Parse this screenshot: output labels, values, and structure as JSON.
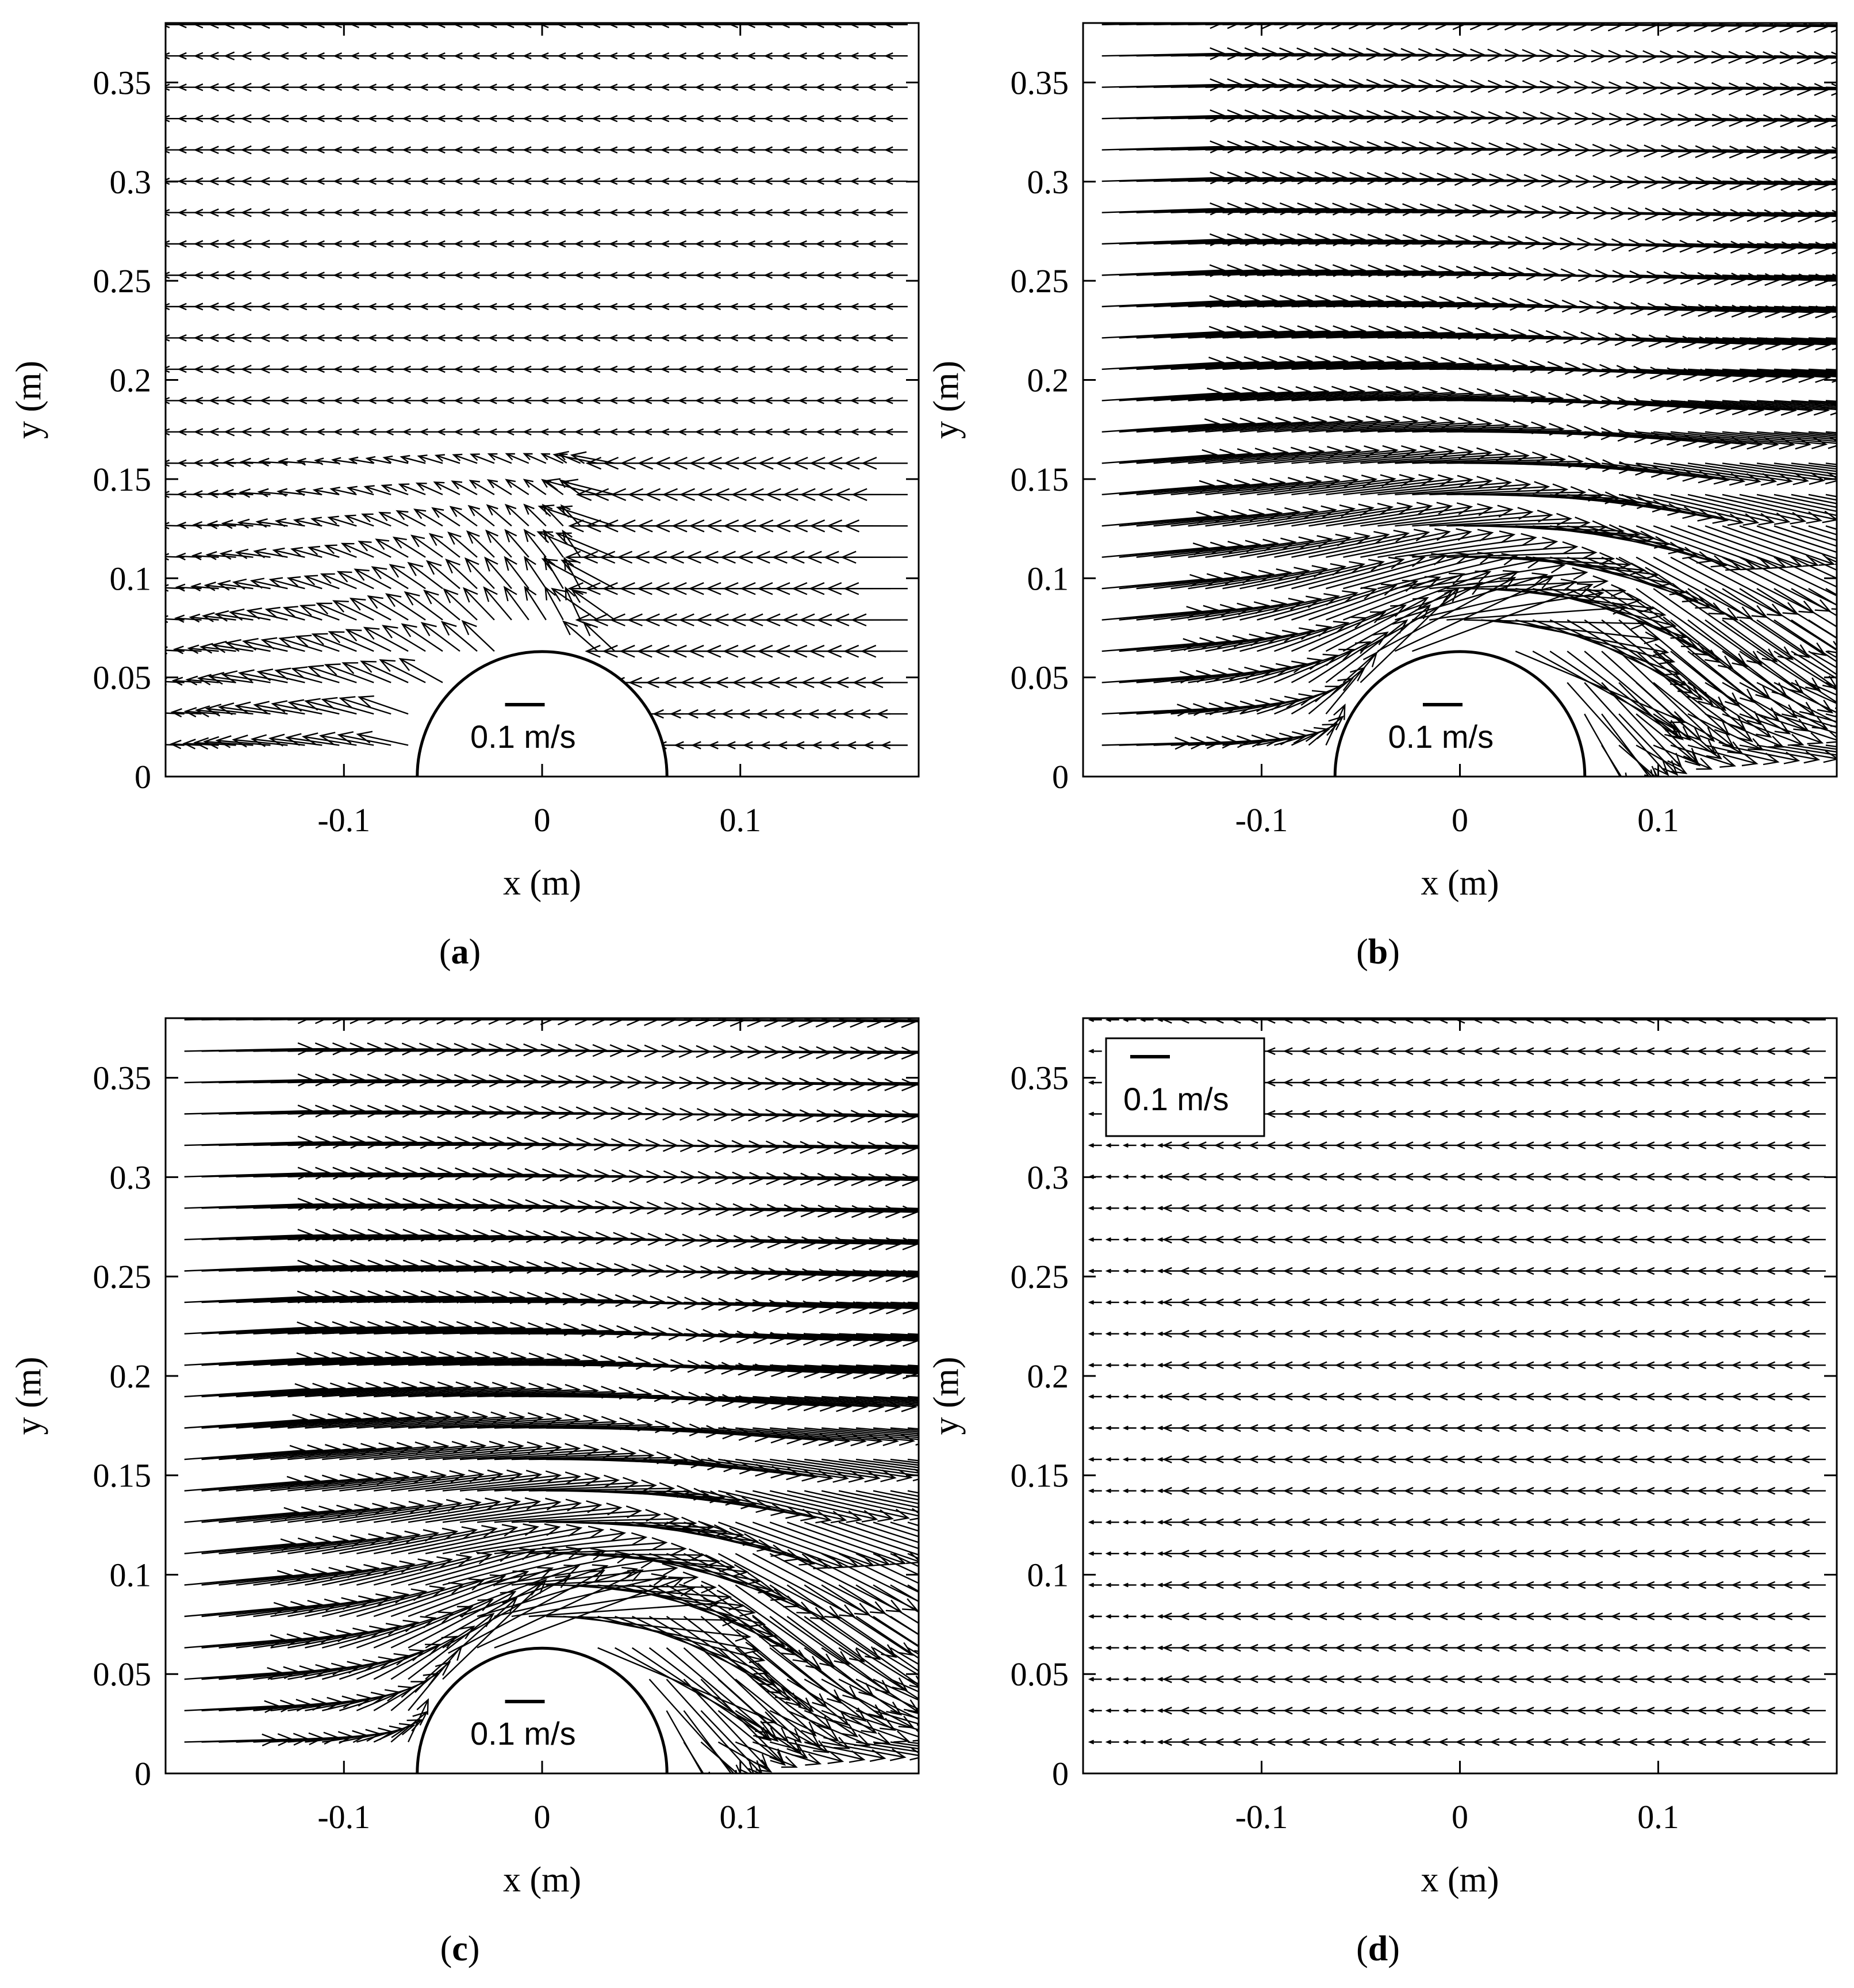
{
  "figure": {
    "panels": [
      {
        "id": "a",
        "label": "a",
        "mode": "a"
      },
      {
        "id": "b",
        "label": "b",
        "mode": "b"
      },
      {
        "id": "c",
        "label": "c",
        "mode": "c"
      },
      {
        "id": "d",
        "label": "d",
        "mode": "d"
      }
    ]
  },
  "chart_data": [
    {
      "type": "quiver",
      "panel": "a",
      "xlabel": "x (m)",
      "ylabel": "y (m)",
      "xlim": [
        -0.19,
        0.19
      ],
      "ylim": [
        0,
        0.38
      ],
      "xticks": [
        {
          "v": -0.1,
          "t": "-0.1"
        },
        {
          "v": 0,
          "t": "0"
        },
        {
          "v": 0.1,
          "t": "0.1"
        }
      ],
      "yticks": [
        {
          "v": 0,
          "t": "0"
        },
        {
          "v": 0.05,
          "t": "0.05"
        },
        {
          "v": 0.1,
          "t": "0.1"
        },
        {
          "v": 0.15,
          "t": "0.15"
        },
        {
          "v": 0.2,
          "t": "0.2"
        },
        {
          "v": 0.25,
          "t": "0.25"
        },
        {
          "v": 0.3,
          "t": "0.3"
        },
        {
          "v": 0.35,
          "t": "0.35"
        }
      ],
      "cylinder_radius_m": 0.063,
      "scale_label": "0.1 m/s",
      "scale_ref_m_s": 0.1,
      "grid_spacing_m": 0.0158,
      "description": "weak leftward flow, left of cylinder directed away from it"
    },
    {
      "type": "quiver",
      "panel": "b",
      "xlabel": "x (m)",
      "ylabel": "y (m)",
      "xlim": [
        -0.19,
        0.19
      ],
      "ylim": [
        0,
        0.38
      ],
      "xticks": [
        {
          "v": -0.1,
          "t": "-0.1"
        },
        {
          "v": 0,
          "t": "0"
        },
        {
          "v": 0.1,
          "t": "0.1"
        }
      ],
      "yticks": [
        {
          "v": 0,
          "t": "0"
        },
        {
          "v": 0.05,
          "t": "0.05"
        },
        {
          "v": 0.1,
          "t": "0.1"
        },
        {
          "v": 0.15,
          "t": "0.15"
        },
        {
          "v": 0.2,
          "t": "0.2"
        },
        {
          "v": 0.25,
          "t": "0.25"
        },
        {
          "v": 0.3,
          "t": "0.3"
        },
        {
          "v": 0.35,
          "t": "0.35"
        }
      ],
      "cylinder_radius_m": 0.063,
      "scale_label": "0.1 m/s",
      "scale_ref_m_s": 0.1,
      "grid_spacing_m": 0.0158,
      "description": "strong rightward flow accelerated over the cylinder"
    },
    {
      "type": "quiver",
      "panel": "c",
      "xlabel": "x (m)",
      "ylabel": "y (m)",
      "xlim": [
        -0.19,
        0.19
      ],
      "ylim": [
        0,
        0.38
      ],
      "xticks": [
        {
          "v": -0.1,
          "t": "-0.1"
        },
        {
          "v": 0,
          "t": "0"
        },
        {
          "v": 0.1,
          "t": "0.1"
        }
      ],
      "yticks": [
        {
          "v": 0,
          "t": "0"
        },
        {
          "v": 0.05,
          "t": "0.05"
        },
        {
          "v": 0.1,
          "t": "0.1"
        },
        {
          "v": 0.15,
          "t": "0.15"
        },
        {
          "v": 0.2,
          "t": "0.2"
        },
        {
          "v": 0.25,
          "t": "0.25"
        },
        {
          "v": 0.3,
          "t": "0.3"
        },
        {
          "v": 0.35,
          "t": "0.35"
        }
      ],
      "cylinder_radius_m": 0.063,
      "scale_label": "0.1 m/s",
      "scale_ref_m_s": 0.1,
      "grid_spacing_m": 0.0158,
      "description": "strong rightward flow accelerated over the cylinder"
    },
    {
      "type": "quiver",
      "panel": "d",
      "xlabel": "x (m)",
      "ylabel": "y (m)",
      "xlim": [
        -0.19,
        0.19
      ],
      "ylim": [
        0,
        0.38
      ],
      "xticks": [
        {
          "v": -0.1,
          "t": "-0.1"
        },
        {
          "v": 0,
          "t": "0"
        },
        {
          "v": 0.1,
          "t": "0.1"
        }
      ],
      "yticks": [
        {
          "v": 0,
          "t": "0"
        },
        {
          "v": 0.05,
          "t": "0.05"
        },
        {
          "v": 0.1,
          "t": "0.1"
        },
        {
          "v": 0.15,
          "t": "0.15"
        },
        {
          "v": 0.2,
          "t": "0.2"
        },
        {
          "v": 0.25,
          "t": "0.25"
        },
        {
          "v": 0.3,
          "t": "0.3"
        },
        {
          "v": 0.35,
          "t": "0.35"
        }
      ],
      "cylinder_radius_m": 0,
      "scale_label": "0.1 m/s",
      "scale_ref_m_s": 0.1,
      "scale_boxed": true,
      "grid_spacing_m": 0.0158,
      "description": "weak uniform leftward flow, no cylinder"
    }
  ]
}
